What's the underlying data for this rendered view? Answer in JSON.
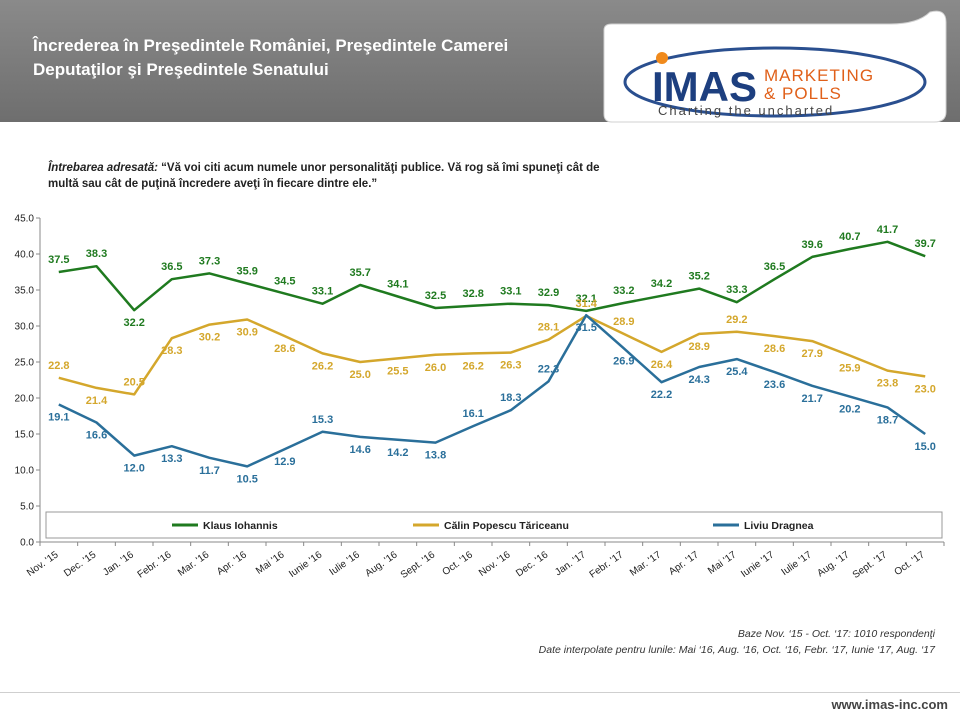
{
  "header": {
    "title_line1": "Încrederea în Preşedintele României,  Preşedintele Camerei",
    "title_line2": "Deputaţilor şi Preşedintele Senatului"
  },
  "logo": {
    "brand": "IMAS",
    "word1": "MARKETING",
    "word2": "& POLLS",
    "tagline": "Charting the uncharted"
  },
  "question": {
    "label": "Întrebarea  adresată:",
    "text": "“Vă voi citi acum numele unor personalităţi publice. Vă rog să îmi spuneţi  cât de multă sau cât de puţină încredere aveţi în fiecare dintre ele.”"
  },
  "notes": {
    "line1": "Baze Nov. ‘15 - Oct. ‘17: 1010 respondenţi",
    "line2": "Date interpolate pentru lunile: Mai ‘16, Aug. ‘16, Oct. ‘16, Febr. ‘17, Iunie ‘17, Aug. ‘17"
  },
  "footer": {
    "url": "www.imas-inc.com"
  },
  "chart_data": {
    "type": "line",
    "title": "",
    "xlabel": "",
    "ylabel": "",
    "ylim": [
      0,
      45
    ],
    "yticks": [
      "0.0",
      "5.0",
      "10.0",
      "15.0",
      "20.0",
      "25.0",
      "30.0",
      "35.0",
      "40.0",
      "45.0"
    ],
    "grid": false,
    "legend_position": "bottom-inside",
    "categories": [
      "Nov. '15",
      "Dec. '15",
      "Jan. '16",
      "Febr. '16",
      "Mar. '16",
      "Apr. '16",
      "Mai '16",
      "Iunie '16",
      "Iulie '16",
      "Aug. '16",
      "Sept. '16",
      "Oct. '16",
      "Nov. '16",
      "Dec. '16",
      "Jan. '17",
      "Febr. '17",
      "Mar. '17",
      "Apr. '17",
      "Mai '17",
      "Iunie '17",
      "Iulie '17",
      "Aug. '17",
      "Sept. '17",
      "Oct. '17"
    ],
    "series": [
      {
        "name": "Klaus Iohannis",
        "color": "#1f7a1f",
        "values": [
          37.5,
          38.3,
          32.2,
          36.5,
          37.3,
          35.9,
          34.5,
          33.1,
          35.7,
          34.1,
          32.5,
          32.8,
          33.1,
          32.9,
          32.1,
          33.2,
          34.2,
          35.2,
          33.3,
          36.5,
          39.6,
          40.7,
          41.7,
          39.7
        ],
        "labels": [
          "37.5",
          "38.3",
          "32.2",
          "36.5",
          "37.3",
          "35.9",
          "34.5",
          "33.1",
          "35.7",
          "34.1",
          "32.5",
          "32.8",
          "33.1",
          "32.9",
          "32.1",
          "33.2",
          "34.2",
          "35.2",
          "33.3",
          "36.5",
          "39.6",
          "40.7",
          "41.7",
          "39.7"
        ]
      },
      {
        "name": "Călin Popescu Tăriceanu",
        "color": "#d4a72c",
        "values": [
          22.8,
          21.4,
          20.5,
          28.3,
          30.2,
          30.9,
          28.6,
          26.2,
          25.0,
          25.5,
          26.0,
          26.2,
          26.3,
          28.1,
          31.4,
          28.9,
          26.4,
          28.9,
          29.2,
          28.6,
          27.9,
          25.9,
          23.8,
          23.0
        ],
        "labels": [
          "22.8",
          "21.4",
          "20.5",
          "28.3",
          "30.2",
          "30.9",
          "28.6",
          "26.2",
          "25.0",
          "25.5",
          "26.0",
          "26.2",
          "26.3",
          "28.1",
          "31.4",
          "28.9",
          "26.4",
          "28.9",
          "29.2",
          "28.6",
          "27.9",
          "25.9",
          "23.8",
          "23.0"
        ]
      },
      {
        "name": "Liviu Dragnea",
        "color": "#2a6f9a",
        "values": [
          19.1,
          16.6,
          12.0,
          13.3,
          11.7,
          10.5,
          12.9,
          15.3,
          14.6,
          14.2,
          13.8,
          16.1,
          18.3,
          22.3,
          31.5,
          26.9,
          22.2,
          24.3,
          25.4,
          23.6,
          21.7,
          20.2,
          18.7,
          15.0
        ],
        "labels": [
          "19.1",
          "16.6",
          "12.0",
          "13.3",
          "11.7",
          "10.5",
          "12.9",
          "15.3",
          "14.6",
          "14.2",
          "13.8",
          "16.1",
          "18.3",
          "22.3",
          "31.5",
          "26.9",
          "22.2",
          "24.3",
          "25.4",
          "23.6",
          "21.7",
          "20.2",
          "18.7",
          "15.0"
        ]
      }
    ]
  }
}
